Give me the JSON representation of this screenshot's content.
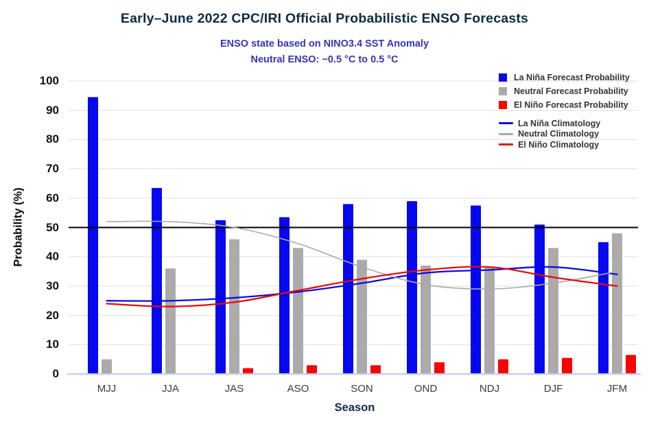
{
  "header": {
    "title": "Early–June 2022 CPC/IRI Official Probabilistic ENSO Forecasts",
    "subtitle_line1": "ENSO state based on NINO3.4 SST Anomaly",
    "subtitle_line2": "Neutral ENSO: −0.5 °C to 0.5 °C"
  },
  "chart_data": {
    "type": "bar",
    "title": "Early–June 2022 CPC/IRI Official Probabilistic ENSO Forecasts",
    "categories": [
      "MJJ",
      "JJA",
      "JAS",
      "ASO",
      "SON",
      "OND",
      "NDJ",
      "DJF",
      "JFM"
    ],
    "series": [
      {
        "name": "La Niña Forecast Probability",
        "kind": "bar",
        "color": "#0707f0",
        "values": [
          94.5,
          63.5,
          52.5,
          53.5,
          58,
          59,
          57.5,
          51,
          45
        ]
      },
      {
        "name": "Neutral Forecast Probability",
        "kind": "bar",
        "color": "#ababab",
        "values": [
          5,
          36,
          46,
          43,
          39,
          37,
          36.5,
          43,
          48
        ]
      },
      {
        "name": "El Niño Forecast Probability",
        "kind": "bar",
        "color": "#f90500",
        "values": [
          0,
          0,
          2,
          3,
          3,
          4,
          5,
          5.5,
          6.5
        ]
      },
      {
        "name": "La Niña Climatology",
        "kind": "line",
        "color": "#0a0ae0",
        "values": [
          25,
          25,
          26,
          28,
          31,
          34.5,
          35.5,
          36.5,
          34
        ]
      },
      {
        "name": "Neutral Climatology",
        "kind": "line",
        "color": "#a9a9a9",
        "values": [
          52,
          52,
          50,
          44.5,
          36.5,
          30.5,
          29,
          31,
          35
        ]
      },
      {
        "name": "El Niño Climatology",
        "kind": "line",
        "color": "#e60b0b",
        "values": [
          24,
          23,
          24.5,
          28.5,
          32.5,
          35.5,
          36.5,
          33,
          30
        ]
      }
    ],
    "xlabel": "Season",
    "ylabel": "Probability (%)",
    "ylim": [
      0,
      100
    ],
    "yticks": [
      0,
      10,
      20,
      30,
      40,
      50,
      60,
      70,
      80,
      90,
      100
    ],
    "reference_line": {
      "value": 50,
      "color": "#000000"
    },
    "grid": true,
    "legend_position": "top-right"
  },
  "colors": {
    "gridline": "#e8e8e8",
    "baseline": "#c6cfe9",
    "reference": "#000000"
  }
}
